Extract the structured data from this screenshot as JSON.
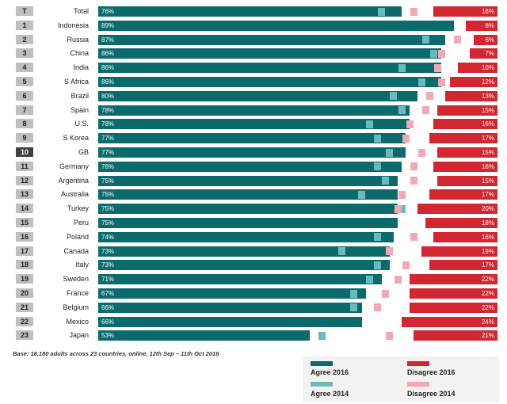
{
  "chart_data": {
    "type": "bar",
    "categories": [
      "Total",
      "Indonesia",
      "Russia",
      "China",
      "India",
      "S Africa",
      "Brazil",
      "Spain",
      "U.S.",
      "S Korea",
      "GB",
      "Germany",
      "Argentina",
      "Australia",
      "Turkey",
      "Peru",
      "Poland",
      "Canada",
      "Italy",
      "Sweden",
      "France",
      "Belgium",
      "Mexico",
      "Japan"
    ],
    "ranks": [
      "T",
      "1",
      "2",
      "3",
      "4",
      "5",
      "6",
      "7",
      "8",
      "9",
      "10",
      "11",
      "12",
      "13",
      "14",
      "15",
      "16",
      "17",
      "18",
      "19",
      "20",
      "21",
      "22",
      "23"
    ],
    "xlim": [
      0,
      100
    ],
    "series": [
      {
        "name": "Agree 2016",
        "values": [
          76,
          89,
          87,
          86,
          86,
          86,
          80,
          78,
          78,
          77,
          77,
          76,
          75,
          75,
          75,
          75,
          74,
          73,
          73,
          71,
          67,
          66,
          66,
          53
        ]
      },
      {
        "name": "Disagree 2016",
        "values": [
          16,
          8,
          6,
          7,
          10,
          12,
          13,
          15,
          16,
          17,
          15,
          16,
          15,
          17,
          20,
          18,
          16,
          19,
          17,
          22,
          22,
          22,
          24,
          21
        ]
      },
      {
        "name": "Agree 2014",
        "values": [
          71,
          null,
          82,
          84,
          76,
          81,
          74,
          76,
          68,
          70,
          73,
          70,
          72,
          66,
          76,
          null,
          70,
          61,
          70,
          68,
          64,
          64,
          null,
          56
        ]
      },
      {
        "name": "Disagree 2014",
        "values": [
          21,
          null,
          10,
          14,
          15,
          14,
          17,
          18,
          22,
          23,
          19,
          21,
          21,
          24,
          25,
          null,
          21,
          27,
          23,
          25,
          28,
          30,
          null,
          27
        ]
      }
    ],
    "base_note": "Base: 18,180 adults across 23 countries, online, 12th Sep – 11th Oct 2016",
    "highlight_rank": "10",
    "colors": {
      "agree_2016": "#0b6b6c",
      "disagree_2016": "#d22630",
      "agree_2014": "#6ab9bd",
      "disagree_2014": "#f2a9b2",
      "rank_box": "#bfbfbf",
      "rank_box_highlight": "#404040"
    }
  },
  "legend": {
    "agree_2016": "Agree 2016",
    "disagree_2016": "Disagree 2016",
    "agree_2014": "Agree 2014",
    "disagree_2014": "Disagree 2014"
  }
}
